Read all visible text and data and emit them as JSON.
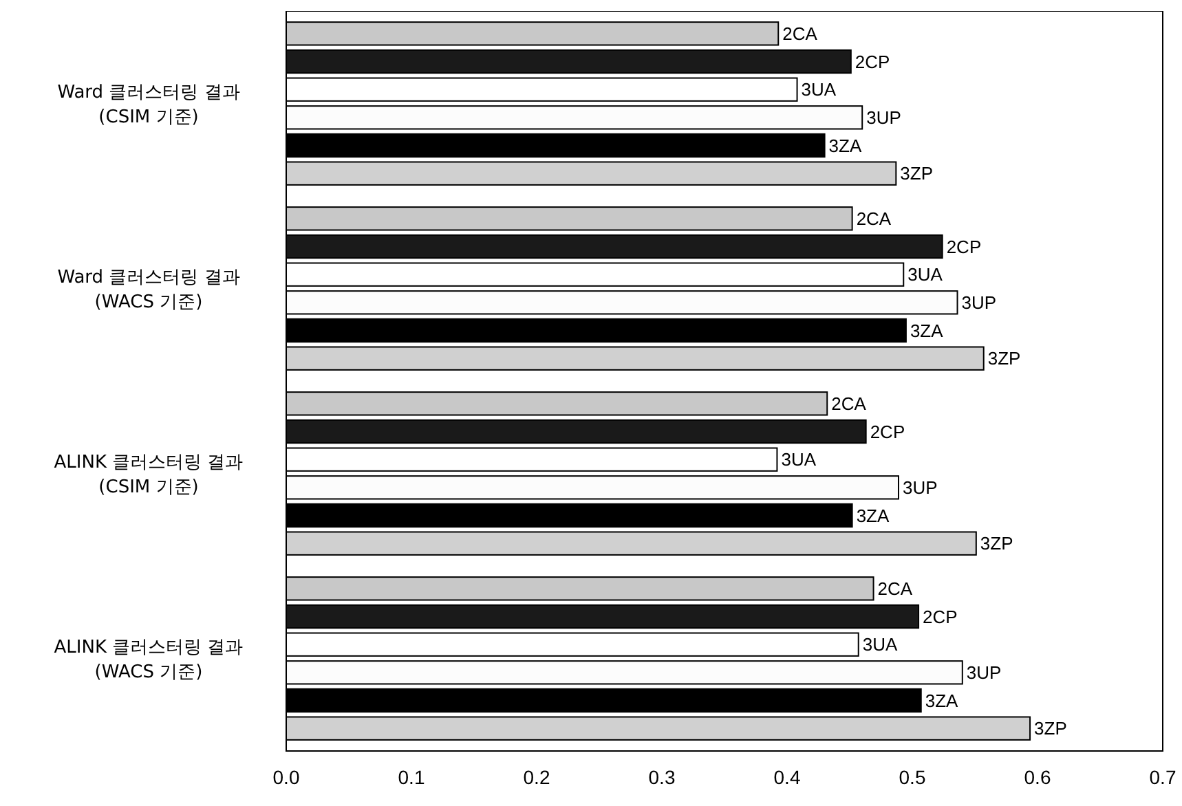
{
  "chart_data": {
    "type": "bar",
    "orientation": "horizontal",
    "categories": [
      "Ward 클러스터링 결과\n(CSIM 기준)",
      "Ward 클러스터링 결과\n(WACS 기준)",
      "ALINK 클러스터링 결과\n(CSIM 기준)",
      "ALINK 클러스터링 결과\n(WACS 기준)"
    ],
    "series": [
      {
        "name": "2CA",
        "color": "#c8c8c8",
        "values": [
          0.393,
          0.452,
          0.432,
          0.469
        ]
      },
      {
        "name": "2CP",
        "color": "#1a1a1a",
        "values": [
          0.451,
          0.524,
          0.463,
          0.505
        ]
      },
      {
        "name": "3UA",
        "color": "#ffffff",
        "values": [
          0.408,
          0.493,
          0.392,
          0.457
        ]
      },
      {
        "name": "3UP",
        "color": "#fcfcfc",
        "values": [
          0.46,
          0.536,
          0.489,
          0.54
        ]
      },
      {
        "name": "3ZA",
        "color": "#000000",
        "values": [
          0.43,
          0.495,
          0.452,
          0.507
        ]
      },
      {
        "name": "3ZP",
        "color": "#d0d0d0",
        "values": [
          0.487,
          0.557,
          0.551,
          0.594
        ]
      }
    ],
    "xlim": [
      0,
      0.7
    ],
    "xticks": [
      "0.0",
      0.1,
      0.2,
      0.3,
      0.4,
      0.5,
      0.6,
      0.7
    ],
    "grid": false
  }
}
